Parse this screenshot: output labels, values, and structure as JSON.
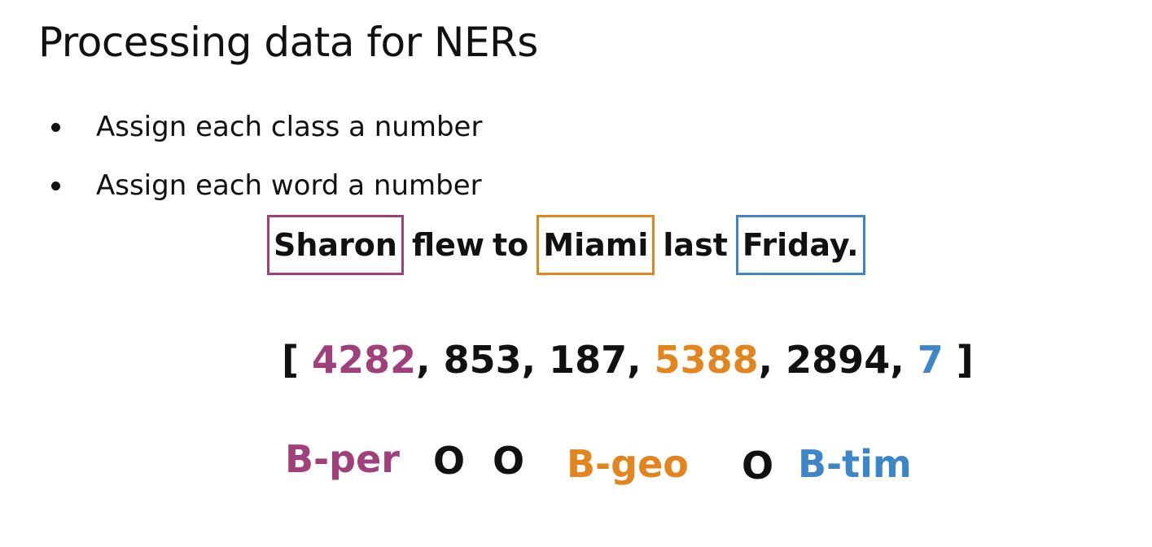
{
  "slide": {
    "title": "Processing data for NERs",
    "bullets": [
      "Assign each class a number",
      "Assign each word a number"
    ]
  },
  "sentence": {
    "words": [
      "Sharon",
      "flew",
      "to",
      "Miami",
      "last",
      "Friday."
    ]
  },
  "index_sequence": {
    "open_bracket": "[",
    "values": [
      "4282",
      "853",
      "187",
      "5388",
      "2894",
      "7"
    ],
    "separator": ",",
    "close_bracket": "]"
  },
  "labels": [
    "B-per",
    "O",
    "O",
    "B-geo",
    "O",
    "B-tim"
  ],
  "colors": {
    "per": "#a0407a",
    "geo": "#e3851e",
    "tim": "#3f86c8",
    "text": "#111111"
  }
}
